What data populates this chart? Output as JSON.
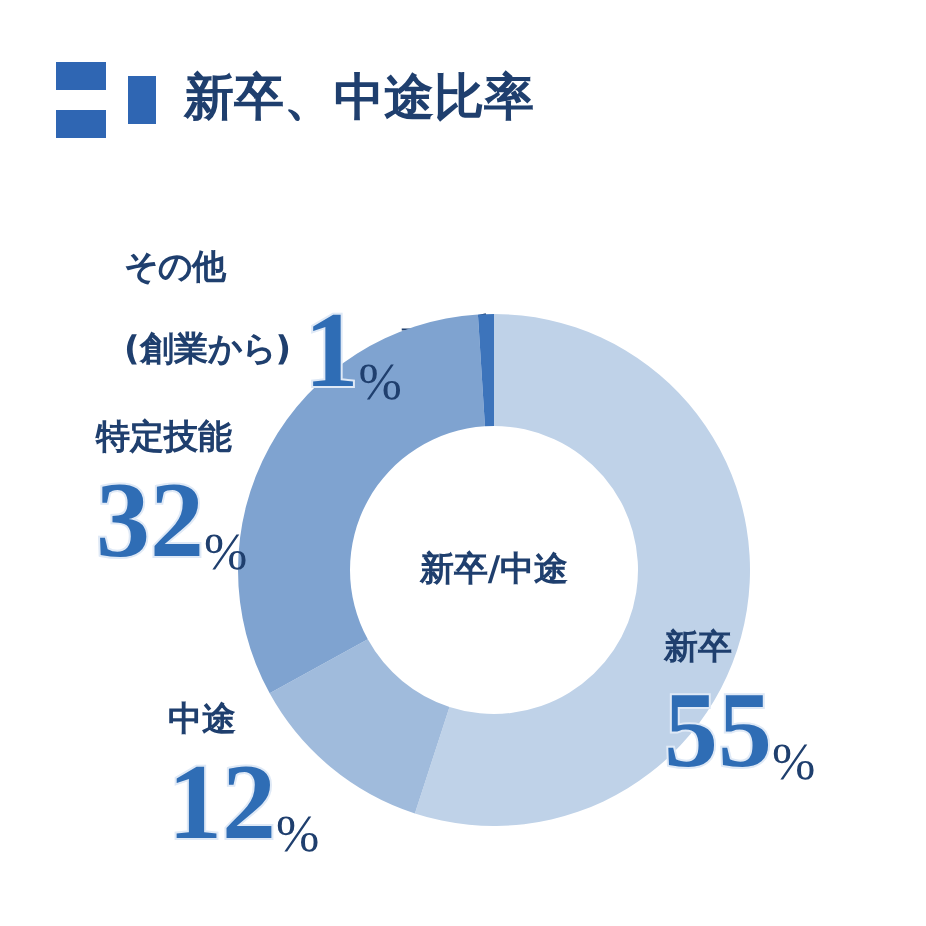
{
  "chart_data": {
    "type": "donut",
    "title": "新卒、中途比率",
    "annotations": [
      "新卒/中途"
    ],
    "categories": [
      "新卒",
      "中途",
      "特定技能",
      "その他\n(創業から)"
    ],
    "values": [
      55,
      12,
      32,
      1
    ],
    "colors": [
      "#bfd2e8",
      "#a0bbdc",
      "#7fa3d0",
      "#3d74bb"
    ],
    "value_labels": [
      "55%",
      "12%",
      "32%",
      "1%"
    ]
  }
}
